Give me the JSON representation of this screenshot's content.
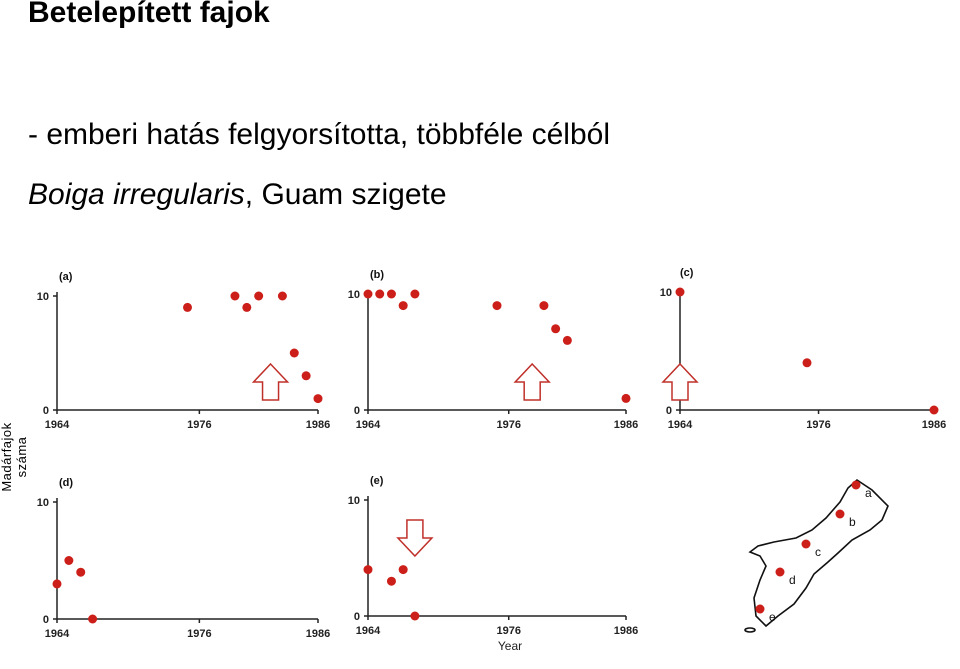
{
  "slide": {
    "title": "Betelepített fajok",
    "bullet": "- emberi hatás felgyorsította, többféle célból",
    "species": "Boiga irregularis",
    "location_suffix": ", Guam szigete",
    "y_axis_label": "Madárfajok száma",
    "x_axis_label": "Year"
  },
  "colors": {
    "points": "#cc1f1a",
    "arrow": "#c0302a"
  },
  "map": {
    "labels": [
      "a",
      "b",
      "c",
      "d",
      "e"
    ]
  },
  "chart_data": [
    {
      "type": "scatter",
      "panel": "(a)",
      "x_ticks": [
        1964,
        1976,
        1986
      ],
      "y_ticks": [
        0,
        10
      ],
      "xlim": [
        1964,
        1986
      ],
      "ylim": [
        0,
        10
      ],
      "points": [
        [
          1975,
          9
        ],
        [
          1979,
          10
        ],
        [
          1980,
          9
        ],
        [
          1981,
          10
        ],
        [
          1983,
          10
        ],
        [
          1984,
          5
        ],
        [
          1985,
          3
        ],
        [
          1986,
          1
        ]
      ],
      "arrow": {
        "direction": "up",
        "year": 1982
      }
    },
    {
      "type": "scatter",
      "panel": "(b)",
      "x_ticks": [
        1964,
        1976,
        1986
      ],
      "y_ticks": [
        0,
        10
      ],
      "xlim": [
        1964,
        1986
      ],
      "ylim": [
        0,
        10
      ],
      "points": [
        [
          1964,
          10
        ],
        [
          1965,
          10
        ],
        [
          1966,
          10
        ],
        [
          1967,
          9
        ],
        [
          1968,
          10
        ],
        [
          1975,
          9
        ],
        [
          1979,
          9
        ],
        [
          1980,
          7
        ],
        [
          1981,
          6
        ],
        [
          1986,
          1
        ]
      ],
      "arrow": {
        "direction": "up",
        "year": 1978
      }
    },
    {
      "type": "scatter",
      "panel": "(c)",
      "x_ticks": [
        1964,
        1976,
        1986
      ],
      "y_ticks": [
        0,
        10
      ],
      "xlim": [
        1964,
        1986
      ],
      "ylim": [
        0,
        10
      ],
      "points": [
        [
          1964,
          10
        ],
        [
          1975,
          4
        ],
        [
          1986,
          0
        ]
      ],
      "arrow": {
        "direction": "up",
        "year": 1964
      }
    },
    {
      "type": "scatter",
      "panel": "(d)",
      "x_ticks": [
        1964,
        1976,
        1986
      ],
      "y_ticks": [
        0,
        10
      ],
      "xlim": [
        1964,
        1986
      ],
      "ylim": [
        0,
        10
      ],
      "points": [
        [
          1964,
          3
        ],
        [
          1965,
          5
        ],
        [
          1966,
          4
        ],
        [
          1967,
          0
        ]
      ]
    },
    {
      "type": "scatter",
      "panel": "(e)",
      "x_ticks": [
        1964,
        1976,
        1986
      ],
      "y_ticks": [
        0,
        10
      ],
      "xlim": [
        1964,
        1986
      ],
      "ylim": [
        0,
        10
      ],
      "points": [
        [
          1964,
          4
        ],
        [
          1966,
          3
        ],
        [
          1967,
          4
        ],
        [
          1968,
          0
        ]
      ],
      "arrow": {
        "direction": "down",
        "year": 1968
      }
    }
  ]
}
